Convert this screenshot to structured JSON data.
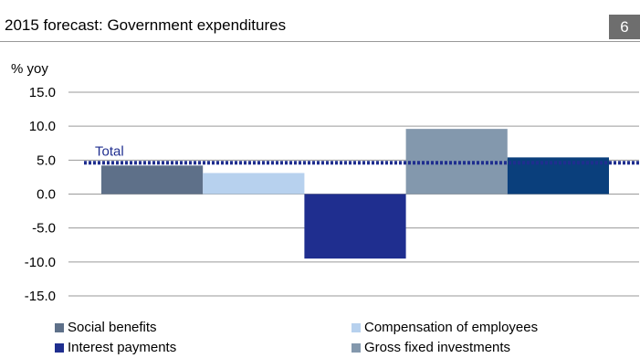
{
  "header": {
    "title": "2015 forecast: Government expenditures",
    "page_number": "6"
  },
  "chart_data": {
    "type": "bar",
    "title": "2015 forecast: Government expenditures",
    "ylabel": "% yoy",
    "xlabel": "",
    "ylim": [
      -15,
      15
    ],
    "yticks": [
      15,
      10,
      5,
      0,
      -5,
      -10,
      -15
    ],
    "ytick_labels": [
      "15.0",
      "10.0",
      "5.0",
      "0.0",
      "-5.0",
      "-10.0",
      "-15.0"
    ],
    "categories": [
      "Social benefits",
      "Compensation of employees",
      "Interest payments",
      "Gross fixed investments",
      ""
    ],
    "values": [
      4.2,
      3.1,
      -9.5,
      9.6,
      5.4
    ],
    "colors": [
      "#5e7089",
      "#b7d1ee",
      "#1f2e8f",
      "#8398ad",
      "#0a3f7c"
    ],
    "reference_line": {
      "label": "Total",
      "value": 4.6,
      "color": "#1f2e8f"
    },
    "grid": true,
    "legend": {
      "position": "bottom",
      "entries": [
        {
          "label": "Social benefits",
          "color": "#5e7089"
        },
        {
          "label": "Compensation of employees",
          "color": "#b7d1ee"
        },
        {
          "label": "Interest payments",
          "color": "#1f2e8f"
        },
        {
          "label": "Gross fixed investments",
          "color": "#8398ad"
        }
      ]
    }
  }
}
